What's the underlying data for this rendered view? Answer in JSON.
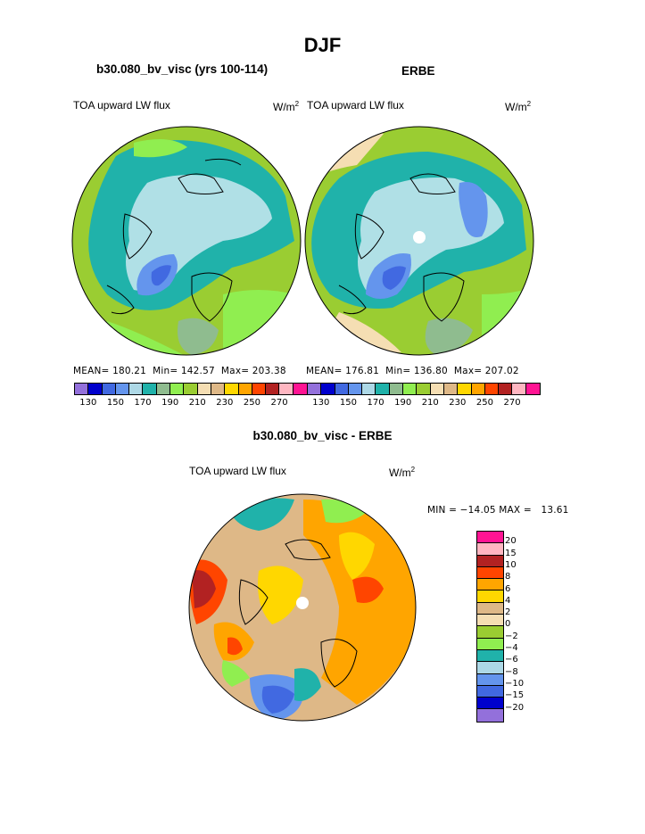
{
  "page_title": "DJF",
  "panels": [
    {
      "heading": "b30.080_bv_visc (yrs 100-114)",
      "subtitle": "TOA upward LW flux",
      "units": "W/m",
      "units_sup": "2",
      "stats": {
        "mean_label": "MEAN=",
        "mean": "180.21",
        "min_label": "Min=",
        "min": "142.57",
        "max_label": "Max=",
        "max": "203.38"
      }
    },
    {
      "heading": "ERBE",
      "subtitle": "TOA upward LW flux",
      "units": "W/m",
      "units_sup": "2",
      "stats": {
        "mean_label": "MEAN=",
        "mean": "176.81",
        "min_label": "Min=",
        "min": "136.80",
        "max_label": "Max=",
        "max": "207.02"
      }
    }
  ],
  "flux_colorbar": {
    "colors": [
      "#9370db",
      "#0000cd",
      "#4169e1",
      "#6495ed",
      "#add8e6",
      "#20b2aa",
      "#8fbc8f",
      "#90ee50",
      "#9acd32",
      "#f5deb3",
      "#deb887",
      "#ffd700",
      "#ffa500",
      "#ff4500",
      "#b22222",
      "#ffb6c1",
      "#ff1493"
    ],
    "tick_labels": [
      "130",
      "150",
      "170",
      "190",
      "210",
      "230",
      "250",
      "270"
    ]
  },
  "difference": {
    "heading": "b30.080_bv_visc - ERBE",
    "subtitle": "TOA upward LW flux",
    "units": "W/m",
    "units_sup": "2",
    "stats_text": "MIN = −14.05 MAX =   13.61",
    "colorbar": {
      "colors": [
        "#ff1493",
        "#ffb6c1",
        "#b22222",
        "#ff4500",
        "#ffa500",
        "#ffd700",
        "#deb887",
        "#f5deb3",
        "#9acd32",
        "#90ee50",
        "#20b2aa",
        "#add8e6",
        "#6495ed",
        "#4169e1",
        "#0000cd",
        "#9370db"
      ],
      "tick_labels": [
        "20",
        "15",
        "10",
        "8",
        "6",
        "4",
        "2",
        "0",
        "−2",
        "−4",
        "−6",
        "−8",
        "−10",
        "−15",
        "−20"
      ]
    }
  },
  "maps": {
    "ocean_color": "#9acd32",
    "ice_color": "#b0e0e6",
    "teal_color": "#20b2aa"
  }
}
